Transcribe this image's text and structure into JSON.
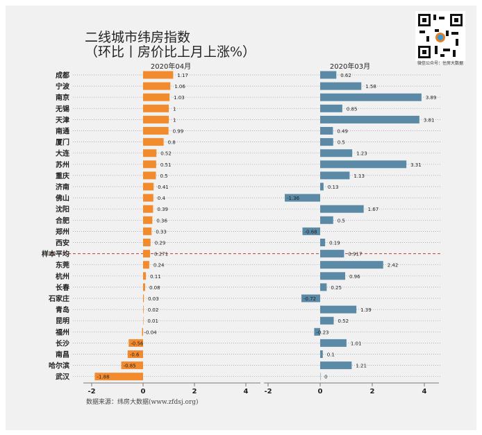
{
  "title_line1": "二线城市纬房指数",
  "title_line2": "（环比丨房价比上月上涨%）",
  "qr_caption": "微信公众号：住房大数据",
  "source": "数据来源：纬房大数据(www.zfdsj.org)",
  "colors": {
    "left_bar": "#f28a2e",
    "right_bar": "#5b8aa6",
    "avg_line": "#c0392b"
  },
  "chart_data": [
    {
      "type": "bar",
      "orientation": "horizontal",
      "title": "2020年04月",
      "categories": [
        "成都",
        "宁波",
        "南京",
        "无锡",
        "天津",
        "南通",
        "厦门",
        "大连",
        "苏州",
        "重庆",
        "济南",
        "佛山",
        "沈阳",
        "合肥",
        "郑州",
        "西安",
        "样本平均",
        "东莞",
        "杭州",
        "长春",
        "石家庄",
        "青岛",
        "昆明",
        "福州",
        "长沙",
        "南昌",
        "哈尔滨",
        "武汉"
      ],
      "values": [
        1.17,
        1.06,
        1.03,
        1,
        1,
        0.99,
        0.8,
        0.52,
        0.51,
        0.5,
        0.41,
        0.4,
        0.39,
        0.36,
        0.33,
        0.29,
        0.271,
        0.24,
        0.11,
        0.08,
        0.03,
        0.02,
        0.01,
        -0.04,
        -0.56,
        -0.6,
        -0.85,
        -1.88
      ],
      "xlim": [
        -2,
        4.5
      ],
      "xticks": [
        -2,
        0,
        2,
        4
      ]
    },
    {
      "type": "bar",
      "orientation": "horizontal",
      "title": "2020年03月",
      "categories": [
        "成都",
        "宁波",
        "南京",
        "无锡",
        "天津",
        "南通",
        "厦门",
        "大连",
        "苏州",
        "重庆",
        "济南",
        "佛山",
        "沈阳",
        "合肥",
        "郑州",
        "西安",
        "样本平均",
        "东莞",
        "杭州",
        "长春",
        "石家庄",
        "青岛",
        "昆明",
        "福州",
        "长沙",
        "南昌",
        "哈尔滨",
        "武汉"
      ],
      "values": [
        0.62,
        1.58,
        3.89,
        0.85,
        3.81,
        0.49,
        0.5,
        1.23,
        3.31,
        1.13,
        0.13,
        -1.36,
        1.67,
        0.5,
        -0.68,
        0.19,
        0.917,
        2.42,
        0.96,
        0.25,
        -0.72,
        1.39,
        0.52,
        -0.23,
        1.01,
        0.1,
        1.21,
        0
      ],
      "xlim": [
        -2.1,
        4.6
      ],
      "xticks": [
        -2,
        0,
        2,
        4
      ]
    }
  ]
}
